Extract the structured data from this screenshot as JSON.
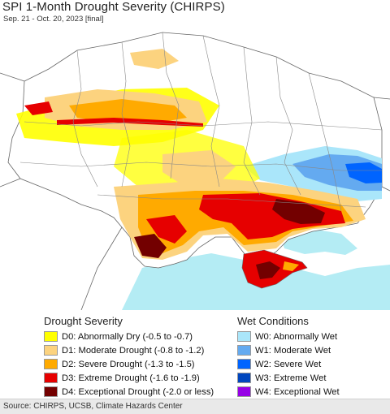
{
  "header": {
    "title": "SPI 1-Month Drought Severity (CHIRPS)",
    "subtitle": "Sep. 21 - Oct. 20, 2023 [final]"
  },
  "legend": {
    "drought_title": "Drought Severity",
    "wet_title": "Wet Conditions",
    "drought_items": [
      {
        "label": "D0: Abnormally Dry (-0.5 to -0.7)",
        "color": "#ffff00"
      },
      {
        "label": "D1: Moderate Drought (-0.8 to -1.2)",
        "color": "#fcd37f"
      },
      {
        "label": "D2: Severe Drought (-1.3 to -1.5)",
        "color": "#ffaa00"
      },
      {
        "label": "D3: Extreme Drought (-1.6 to -1.9)",
        "color": "#e60000"
      },
      {
        "label": "D4: Exceptional Drought (-2.0 or less)",
        "color": "#730000"
      }
    ],
    "wet_items": [
      {
        "label": "W0: Abnormally Wet",
        "color": "#aae6fa"
      },
      {
        "label": "W1: Moderate Wet",
        "color": "#64aaf0"
      },
      {
        "label": "W2: Severe Wet",
        "color": "#0064ff"
      },
      {
        "label": "W3: Extreme Wet",
        "color": "#0046be"
      },
      {
        "label": "W4: Exceptional Wet",
        "color": "#9600e6"
      }
    ]
  },
  "footer": {
    "source": "Source: CHIRPS, UCSB, Climate Hazards Center"
  }
}
